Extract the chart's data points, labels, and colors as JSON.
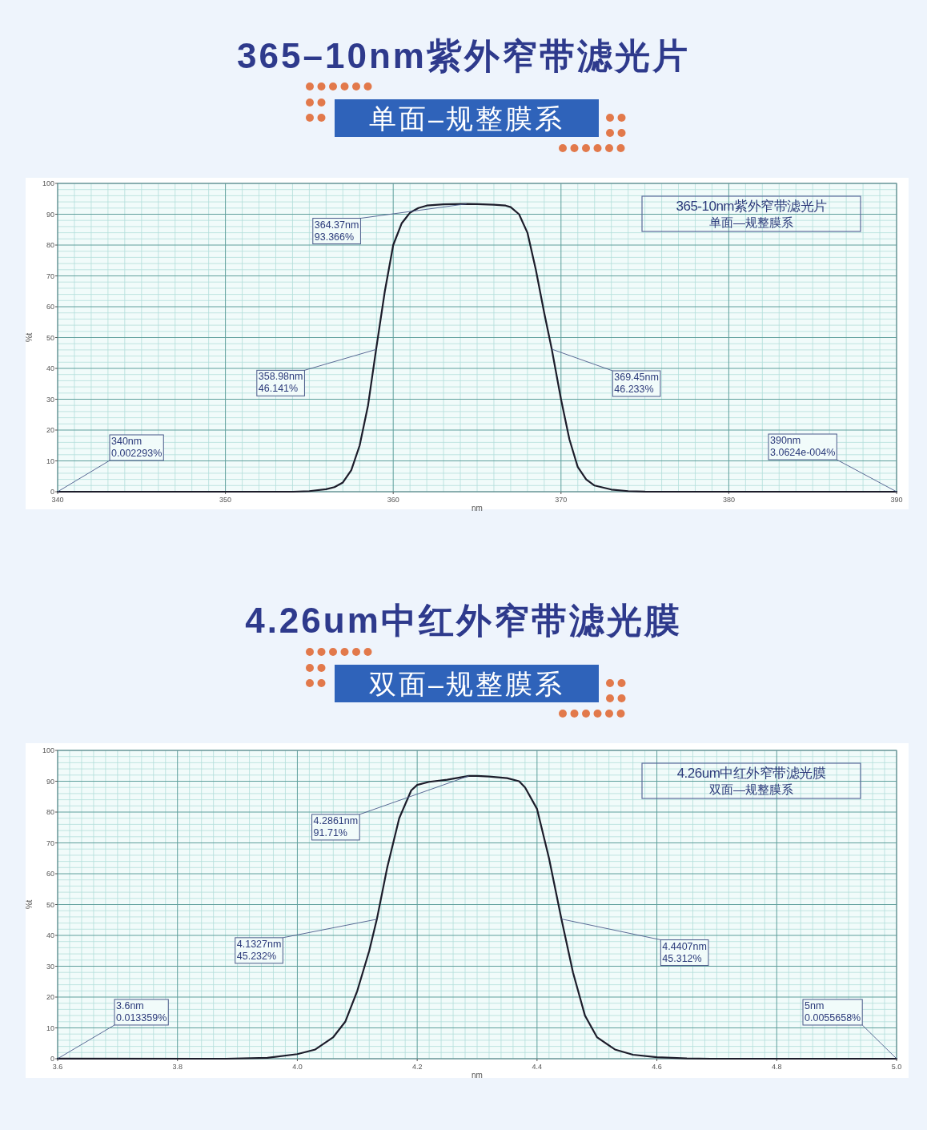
{
  "chart_data": [
    {
      "type": "line",
      "title": "365–10nm紫外窄带滤光片",
      "subtitle": "单面–规整膜系",
      "xlabel": "nm",
      "ylabel": "%t",
      "xlim": [
        340,
        390
      ],
      "xticks": [
        340,
        {
          "value": 341,
          "label": null
        },
        {
          "value": 342,
          "label": null
        },
        {
          "value": 343,
          "label": null
        },
        {
          "value": 344,
          "label": null
        },
        {
          "value": 345,
          "label": null
        },
        {
          "value": 346,
          "label": null
        },
        {
          "value": 347,
          "label": null
        },
        {
          "value": 348,
          "label": null
        },
        {
          "value": 349,
          "label": null
        },
        350,
        {
          "value": 351,
          "label": null
        },
        {
          "value": 352,
          "label": null
        },
        {
          "value": 353,
          "label": null
        },
        {
          "value": 354,
          "label": null
        },
        {
          "value": 355,
          "label": null
        },
        {
          "value": 356,
          "label": null
        },
        {
          "value": 357,
          "label": null
        },
        {
          "value": 358,
          "label": null
        },
        {
          "value": 359,
          "label": null
        },
        360,
        {
          "value": 361,
          "label": null
        },
        {
          "value": 362,
          "label": null
        },
        {
          "value": 363,
          "label": null
        },
        {
          "value": 364,
          "label": null
        },
        {
          "value": 365,
          "label": null
        },
        {
          "value": 366,
          "label": null
        },
        {
          "value": 367,
          "label": null
        },
        {
          "value": 368,
          "label": null
        },
        {
          "value": 369,
          "label": null
        },
        370,
        {
          "value": 371,
          "label": null
        },
        {
          "value": 372,
          "label": null
        },
        {
          "value": 373,
          "label": null
        },
        {
          "value": 374,
          "label": null
        },
        {
          "value": 375,
          "label": null
        },
        {
          "value": 376,
          "label": null
        },
        {
          "value": 377,
          "label": null
        },
        {
          "value": 378,
          "label": null
        },
        {
          "value": 379,
          "label": null
        },
        380,
        {
          "value": 381,
          "label": null
        },
        {
          "value": 382,
          "label": null
        },
        {
          "value": 383,
          "label": null
        },
        {
          "value": 384,
          "label": null
        },
        {
          "value": 385,
          "label": null
        },
        {
          "value": 386,
          "label": null
        },
        {
          "value": 387,
          "label": null
        },
        {
          "value": 388,
          "label": null
        },
        {
          "value": 389,
          "label": null
        },
        390
      ],
      "ylim": [
        0,
        100
      ],
      "yticks": [
        0,
        {
          "value": 2,
          "label": null
        },
        {
          "value": 4,
          "label": null
        },
        {
          "value": 6,
          "label": null
        },
        {
          "value": 8,
          "label": null
        },
        10,
        {
          "value": 12,
          "label": null
        },
        {
          "value": 14,
          "label": null
        },
        {
          "value": 16,
          "label": null
        },
        {
          "value": 18,
          "label": null
        },
        20,
        {
          "value": 22,
          "label": null
        },
        {
          "value": 24,
          "label": null
        },
        {
          "value": 26,
          "label": null
        },
        {
          "value": 28,
          "label": null
        },
        30,
        {
          "value": 32,
          "label": null
        },
        {
          "value": 34,
          "label": null
        },
        {
          "value": 36,
          "label": null
        },
        {
          "value": 38,
          "label": null
        },
        40,
        {
          "value": 42,
          "label": null
        },
        {
          "value": 44,
          "label": null
        },
        {
          "value": 46,
          "label": null
        },
        {
          "value": 48,
          "label": null
        },
        50,
        {
          "value": 52,
          "label": null
        },
        {
          "value": 54,
          "label": null
        },
        {
          "value": 56,
          "label": null
        },
        {
          "value": 58,
          "label": null
        },
        60,
        {
          "value": 62,
          "label": null
        },
        {
          "value": 64,
          "label": null
        },
        {
          "value": 66,
          "label": null
        },
        {
          "value": 68,
          "label": null
        },
        70,
        {
          "value": 72,
          "label": null
        },
        {
          "value": 74,
          "label": null
        },
        {
          "value": 76,
          "label": null
        },
        {
          "value": 78,
          "label": null
        },
        80,
        {
          "value": 82,
          "label": null
        },
        {
          "value": 84,
          "label": null
        },
        {
          "value": 86,
          "label": null
        },
        {
          "value": 88,
          "label": null
        },
        90,
        {
          "value": 92,
          "label": null
        },
        {
          "value": 94,
          "label": null
        },
        {
          "value": 96,
          "label": null
        },
        {
          "value": 98,
          "label": null
        },
        100
      ],
      "grid": true,
      "series": [
        {
          "color": "#1c1c2a",
          "x": [
            340,
            345,
            350,
            354,
            355,
            356,
            356.5,
            357,
            357.5,
            358,
            358.5,
            358.98,
            359.5,
            360,
            360.5,
            361,
            361.5,
            362,
            363,
            364.37,
            365,
            366,
            366.7,
            367,
            367.5,
            368,
            368.5,
            369,
            369.45,
            370,
            370.5,
            371,
            371.5,
            372,
            373,
            374,
            375,
            380,
            385.7,
            390
          ],
          "values": [
            0.002293,
            0,
            0,
            0,
            0.2,
            0.8,
            1.5,
            3,
            7,
            15,
            28,
            46.141,
            65,
            80,
            87,
            90.5,
            92,
            92.8,
            93.2,
            93.366,
            93.3,
            93.1,
            92.8,
            92.3,
            90,
            84,
            72,
            58,
            46.233,
            30,
            17,
            8,
            4,
            2,
            0.7,
            0.2,
            0.05,
            0,
            0,
            0.00030624
          ]
        }
      ],
      "annotations": [
        {
          "text": "340nm\n0.002293%",
          "x": 340,
          "y": 0.002293
        },
        {
          "text": "358.98nm\n46.141%",
          "x": 358.98,
          "y": 46.141
        },
        {
          "text": "364.37nm\n93.366%",
          "x": 364.37,
          "y": 93.366
        },
        {
          "text": "369.45nm\n46.233%",
          "x": 369.45,
          "y": 46.233
        },
        {
          "text": "390nm\n3.0624e-004%",
          "x": 390,
          "y": 0.00030624
        },
        "365-10nm紫外窄带滤光片",
        "单面—规整膜系"
      ]
    },
    {
      "type": "line",
      "title": "4.26um中红外窄带滤光膜",
      "subtitle": "双面–规整膜系",
      "xlabel": "nm",
      "ylabel": "%t",
      "xlim": [
        3.6,
        5.0
      ],
      "xticks": [
        {
          "value": 3.6,
          "label": "3.6"
        },
        {
          "value": 3.62,
          "label": null
        },
        {
          "value": 3.64,
          "label": null
        },
        {
          "value": 3.66,
          "label": null
        },
        {
          "value": 3.68,
          "label": null
        },
        {
          "value": 3.7,
          "label": null
        },
        {
          "value": 3.72,
          "label": null
        },
        {
          "value": 3.74,
          "label": null
        },
        {
          "value": 3.76,
          "label": null
        },
        {
          "value": 3.78,
          "label": null
        },
        {
          "value": 3.8,
          "label": "3.8"
        },
        {
          "value": 3.82,
          "label": null
        },
        {
          "value": 3.84,
          "label": null
        },
        {
          "value": 3.86,
          "label": null
        },
        {
          "value": 3.88,
          "label": null
        },
        {
          "value": 3.9,
          "label": null
        },
        {
          "value": 3.92,
          "label": null
        },
        {
          "value": 3.94,
          "label": null
        },
        {
          "value": 3.96,
          "label": null
        },
        {
          "value": 3.98,
          "label": null
        },
        {
          "value": 4.0,
          "label": "4.0"
        },
        {
          "value": 4.02,
          "label": null
        },
        {
          "value": 4.04,
          "label": null
        },
        {
          "value": 4.06,
          "label": null
        },
        {
          "value": 4.08,
          "label": null
        },
        {
          "value": 4.1,
          "label": null
        },
        {
          "value": 4.12,
          "label": null
        },
        {
          "value": 4.14,
          "label": null
        },
        {
          "value": 4.16,
          "label": null
        },
        {
          "value": 4.18,
          "label": null
        },
        {
          "value": 4.2,
          "label": "4.2"
        },
        {
          "value": 4.22,
          "label": null
        },
        {
          "value": 4.24,
          "label": null
        },
        {
          "value": 4.26,
          "label": null
        },
        {
          "value": 4.28,
          "label": null
        },
        {
          "value": 4.3,
          "label": null
        },
        {
          "value": 4.32,
          "label": null
        },
        {
          "value": 4.34,
          "label": null
        },
        {
          "value": 4.36,
          "label": null
        },
        {
          "value": 4.38,
          "label": null
        },
        {
          "value": 4.4,
          "label": "4.4"
        },
        {
          "value": 4.42,
          "label": null
        },
        {
          "value": 4.44,
          "label": null
        },
        {
          "value": 4.46,
          "label": null
        },
        {
          "value": 4.48,
          "label": null
        },
        {
          "value": 4.5,
          "label": null
        },
        {
          "value": 4.52,
          "label": null
        },
        {
          "value": 4.54,
          "label": null
        },
        {
          "value": 4.56,
          "label": null
        },
        {
          "value": 4.58,
          "label": null
        },
        {
          "value": 4.6,
          "label": "4.6"
        },
        {
          "value": 4.62,
          "label": null
        },
        {
          "value": 4.64,
          "label": null
        },
        {
          "value": 4.66,
          "label": null
        },
        {
          "value": 4.68,
          "label": null
        },
        {
          "value": 4.7,
          "label": null
        },
        {
          "value": 4.72,
          "label": null
        },
        {
          "value": 4.74,
          "label": null
        },
        {
          "value": 4.76,
          "label": null
        },
        {
          "value": 4.78,
          "label": null
        },
        {
          "value": 4.8,
          "label": "4.8"
        },
        {
          "value": 4.82,
          "label": null
        },
        {
          "value": 4.84,
          "label": null
        },
        {
          "value": 4.86,
          "label": null
        },
        {
          "value": 4.88,
          "label": null
        },
        {
          "value": 4.9,
          "label": null
        },
        {
          "value": 4.92,
          "label": null
        },
        {
          "value": 4.94,
          "label": null
        },
        {
          "value": 4.96,
          "label": null
        },
        {
          "value": 4.98,
          "label": null
        },
        {
          "value": 5.0,
          "label": "5.0"
        }
      ],
      "ylim": [
        0,
        100
      ],
      "yticks": [
        0,
        {
          "value": 2,
          "label": null
        },
        {
          "value": 4,
          "label": null
        },
        {
          "value": 6,
          "label": null
        },
        {
          "value": 8,
          "label": null
        },
        10,
        {
          "value": 12,
          "label": null
        },
        {
          "value": 14,
          "label": null
        },
        {
          "value": 16,
          "label": null
        },
        {
          "value": 18,
          "label": null
        },
        20,
        {
          "value": 22,
          "label": null
        },
        {
          "value": 24,
          "label": null
        },
        {
          "value": 26,
          "label": null
        },
        {
          "value": 28,
          "label": null
        },
        30,
        {
          "value": 32,
          "label": null
        },
        {
          "value": 34,
          "label": null
        },
        {
          "value": 36,
          "label": null
        },
        {
          "value": 38,
          "label": null
        },
        40,
        {
          "value": 42,
          "label": null
        },
        {
          "value": 44,
          "label": null
        },
        {
          "value": 46,
          "label": null
        },
        {
          "value": 48,
          "label": null
        },
        50,
        {
          "value": 52,
          "label": null
        },
        {
          "value": 54,
          "label": null
        },
        {
          "value": 56,
          "label": null
        },
        {
          "value": 58,
          "label": null
        },
        60,
        {
          "value": 62,
          "label": null
        },
        {
          "value": 64,
          "label": null
        },
        {
          "value": 66,
          "label": null
        },
        {
          "value": 68,
          "label": null
        },
        70,
        {
          "value": 72,
          "label": null
        },
        {
          "value": 74,
          "label": null
        },
        {
          "value": 76,
          "label": null
        },
        {
          "value": 78,
          "label": null
        },
        80,
        {
          "value": 82,
          "label": null
        },
        {
          "value": 84,
          "label": null
        },
        {
          "value": 86,
          "label": null
        },
        {
          "value": 88,
          "label": null
        },
        90,
        {
          "value": 92,
          "label": null
        },
        {
          "value": 94,
          "label": null
        },
        {
          "value": 96,
          "label": null
        },
        {
          "value": 98,
          "label": null
        },
        100
      ],
      "grid": true,
      "series": [
        {
          "color": "#1c1c2a",
          "x": [
            3.6,
            3.88,
            3.95,
            4.0,
            4.03,
            4.06,
            4.08,
            4.1,
            4.12,
            4.1327,
            4.15,
            4.17,
            4.19,
            4.2,
            4.22,
            4.25,
            4.2861,
            4.3,
            4.32,
            4.35,
            4.37,
            4.38,
            4.4,
            4.42,
            4.4407,
            4.46,
            4.48,
            4.5,
            4.53,
            4.56,
            4.6,
            4.65,
            4.69,
            5.0
          ],
          "values": [
            0.013359,
            0,
            0.3,
            1.5,
            3,
            7,
            12,
            22,
            35,
            45.232,
            62,
            78,
            87,
            88.8,
            89.8,
            90.5,
            91.71,
            91.7,
            91.5,
            91,
            90,
            88,
            81,
            65,
            45.312,
            28,
            14,
            7,
            3,
            1.3,
            0.5,
            0.1,
            0,
            0.0055658
          ]
        }
      ],
      "annotations": [
        {
          "text": "3.6nm\n0.013359%",
          "x": 3.6,
          "y": 0.013359
        },
        {
          "text": "4.1327nm\n45.232%",
          "x": 4.1327,
          "y": 45.232
        },
        {
          "text": "4.2861nm\n91.71%",
          "x": 4.2861,
          "y": 91.71
        },
        {
          "text": "4.4407nm\n45.312%",
          "x": 4.4407,
          "y": 45.312
        },
        {
          "text": "5nm\n0.0055658%",
          "x": 5,
          "y": 0.0055658
        },
        "4.26um中红外窄带滤光膜",
        "双面—规整膜系"
      ]
    }
  ]
}
